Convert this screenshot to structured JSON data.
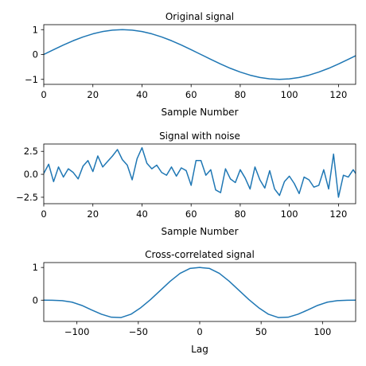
{
  "chart_data": [
    {
      "type": "line",
      "title": "Original signal",
      "xlabel": "Sample Number",
      "ylabel": "",
      "xlim": [
        0,
        127
      ],
      "ylim": [
        -1.2,
        1.2
      ],
      "xticks": [
        0,
        20,
        40,
        60,
        80,
        100,
        120
      ],
      "yticks": [
        -1,
        0,
        1
      ],
      "xtick_labels": [
        "0",
        "20",
        "40",
        "60",
        "80",
        "100",
        "120"
      ],
      "ytick_labels": [
        "−1",
        "0",
        "1"
      ],
      "grid": false,
      "color": "#1f77b4",
      "series": [
        {
          "x": [
            0,
            4,
            8,
            12,
            16,
            20,
            24,
            28,
            32,
            36,
            40,
            44,
            48,
            52,
            56,
            60,
            64,
            68,
            72,
            76,
            80,
            84,
            88,
            92,
            96,
            100,
            104,
            108,
            112,
            116,
            120,
            124,
            127
          ],
          "values": [
            0,
            0.195,
            0.383,
            0.556,
            0.707,
            0.831,
            0.924,
            0.981,
            1.0,
            0.981,
            0.924,
            0.831,
            0.707,
            0.556,
            0.383,
            0.195,
            0,
            -0.195,
            -0.383,
            -0.556,
            -0.707,
            -0.831,
            -0.924,
            -0.981,
            -1.0,
            -0.981,
            -0.924,
            -0.831,
            -0.707,
            -0.556,
            -0.383,
            -0.195,
            -0.049
          ]
        }
      ]
    },
    {
      "type": "line",
      "title": "Signal with noise",
      "xlabel": "Sample Number",
      "ylabel": "",
      "xlim": [
        0,
        127
      ],
      "ylim": [
        -3.2,
        3.3
      ],
      "xticks": [
        0,
        20,
        40,
        60,
        80,
        100,
        120
      ],
      "yticks": [
        -2.5,
        0,
        2.5
      ],
      "xtick_labels": [
        "0",
        "20",
        "40",
        "60",
        "80",
        "100",
        "120"
      ],
      "ytick_labels": [
        "−2.5",
        "0.0",
        "2.5"
      ],
      "grid": false,
      "color": "#1f77b4",
      "series": [
        {
          "x": [
            0,
            2,
            4,
            6,
            8,
            10,
            12,
            14,
            16,
            18,
            20,
            22,
            24,
            26,
            28,
            30,
            32,
            34,
            36,
            38,
            40,
            42,
            44,
            46,
            48,
            50,
            52,
            54,
            56,
            58,
            60,
            62,
            64,
            66,
            68,
            70,
            72,
            74,
            76,
            78,
            80,
            82,
            84,
            86,
            88,
            90,
            92,
            94,
            96,
            98,
            100,
            102,
            104,
            106,
            108,
            110,
            112,
            114,
            116,
            118,
            120,
            122,
            124,
            126,
            127
          ],
          "values": [
            0.1,
            1.1,
            -0.8,
            0.8,
            -0.3,
            0.6,
            0.2,
            -0.5,
            0.9,
            1.5,
            0.3,
            2.0,
            0.8,
            1.4,
            2.0,
            2.7,
            1.6,
            1.0,
            -0.6,
            1.7,
            2.9,
            1.2,
            0.6,
            1.0,
            0.2,
            -0.1,
            0.8,
            -0.2,
            0.7,
            0.4,
            -1.2,
            1.5,
            1.5,
            -0.1,
            0.5,
            -1.7,
            -2.0,
            0.6,
            -0.5,
            -0.9,
            0.5,
            -0.4,
            -1.6,
            0.8,
            -0.6,
            -1.5,
            0.4,
            -1.6,
            -2.3,
            -0.8,
            -0.2,
            -1.0,
            -2.1,
            -0.3,
            -0.6,
            -1.4,
            -1.2,
            0.5,
            -1.6,
            2.2,
            -2.5,
            -0.1,
            -0.3,
            0.5,
            0.1
          ]
        }
      ]
    },
    {
      "type": "line",
      "title": "Cross-correlated signal",
      "xlabel": "Lag",
      "ylabel": "",
      "xlim": [
        -127,
        127
      ],
      "ylim": [
        -0.65,
        1.15
      ],
      "xticks": [
        -100,
        -50,
        0,
        50,
        100
      ],
      "yticks": [
        0,
        1
      ],
      "xtick_labels": [
        "−100",
        "−50",
        "0",
        "50",
        "100"
      ],
      "ytick_labels": [
        "0",
        "1"
      ],
      "grid": false,
      "color": "#1f77b4",
      "series": [
        {
          "x": [
            -127,
            -120,
            -112,
            -104,
            -96,
            -88,
            -80,
            -72,
            -64,
            -56,
            -48,
            -40,
            -32,
            -24,
            -16,
            -8,
            0,
            8,
            16,
            24,
            32,
            40,
            48,
            56,
            64,
            72,
            80,
            88,
            96,
            104,
            112,
            120,
            127
          ],
          "values": [
            0.0,
            -0.003,
            -0.015,
            -0.06,
            -0.16,
            -0.3,
            -0.43,
            -0.52,
            -0.53,
            -0.43,
            -0.23,
            0.02,
            0.3,
            0.58,
            0.82,
            0.97,
            1.0,
            0.97,
            0.82,
            0.58,
            0.3,
            0.02,
            -0.23,
            -0.43,
            -0.53,
            -0.52,
            -0.43,
            -0.3,
            -0.16,
            -0.06,
            -0.015,
            -0.003,
            0.0
          ]
        }
      ]
    }
  ]
}
